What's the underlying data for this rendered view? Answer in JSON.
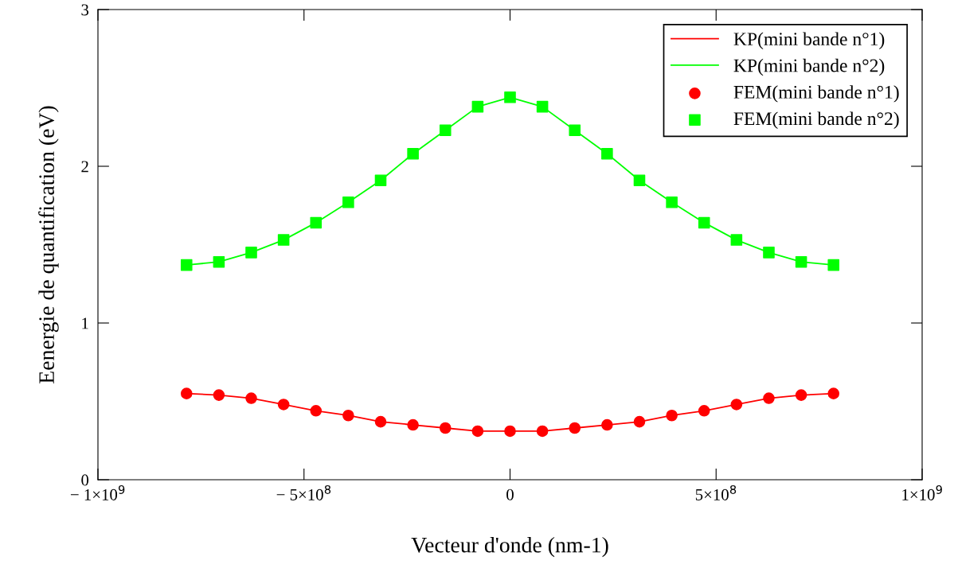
{
  "chart_data": {
    "type": "line",
    "xlabel": "Vecteur d'onde (nm-1)",
    "ylabel": "Eenergie de quantification (eV)",
    "x": [
      -785000000,
      -706500000,
      -628000000,
      -549500000,
      -471000000,
      -392500000,
      -314000000,
      -235500000,
      -157000000,
      -78500000,
      0,
      78500000,
      157000000,
      235500000,
      314000000,
      392500000,
      471000000,
      549500000,
      628000000,
      706500000,
      785000000
    ],
    "series": [
      {
        "name": "KP(mini bande n°1)",
        "marker": "none",
        "color": "#ff0000",
        "values": [
          0.55,
          0.54,
          0.52,
          0.48,
          0.44,
          0.41,
          0.37,
          0.35,
          0.33,
          0.31,
          0.31,
          0.31,
          0.33,
          0.35,
          0.37,
          0.41,
          0.44,
          0.48,
          0.52,
          0.54,
          0.55
        ]
      },
      {
        "name": "KP(mini bande n°2)",
        "marker": "none",
        "color": "#00ff00",
        "values": [
          1.37,
          1.39,
          1.45,
          1.53,
          1.64,
          1.77,
          1.91,
          2.08,
          2.23,
          2.38,
          2.44,
          2.38,
          2.23,
          2.08,
          1.91,
          1.77,
          1.64,
          1.53,
          1.45,
          1.39,
          1.37
        ]
      },
      {
        "name": "FEM(mini bande n°1)",
        "type": "scatter",
        "marker": "circle",
        "color": "#ff0000",
        "values": [
          0.55,
          0.54,
          0.52,
          0.48,
          0.44,
          0.41,
          0.37,
          0.35,
          0.33,
          0.31,
          0.31,
          0.31,
          0.33,
          0.35,
          0.37,
          0.41,
          0.44,
          0.48,
          0.52,
          0.54,
          0.55
        ]
      },
      {
        "name": "FEM(mini bande n°2)",
        "type": "scatter",
        "marker": "square",
        "color": "#00ff00",
        "values": [
          1.37,
          1.39,
          1.45,
          1.53,
          1.64,
          1.77,
          1.91,
          2.08,
          2.23,
          2.38,
          2.44,
          2.38,
          2.23,
          2.08,
          1.91,
          1.77,
          1.64,
          1.53,
          1.45,
          1.39,
          1.37
        ]
      }
    ],
    "xlim": [
      -1000000000,
      1000000000
    ],
    "xticks": [
      {
        "value": -1000000000,
        "label": "− 1×10$^{9}$"
      },
      {
        "value": -500000000,
        "label": "− 5×10$^{8}$"
      },
      0,
      {
        "value": 500000000,
        "label": "5×10$^{8}$"
      },
      {
        "value": 1000000000,
        "label": "1×10$^{9}$"
      }
    ],
    "ylim": [
      0,
      3
    ],
    "yticks": [
      0,
      1,
      2,
      3
    ],
    "grid": false,
    "legend": "top right"
  }
}
